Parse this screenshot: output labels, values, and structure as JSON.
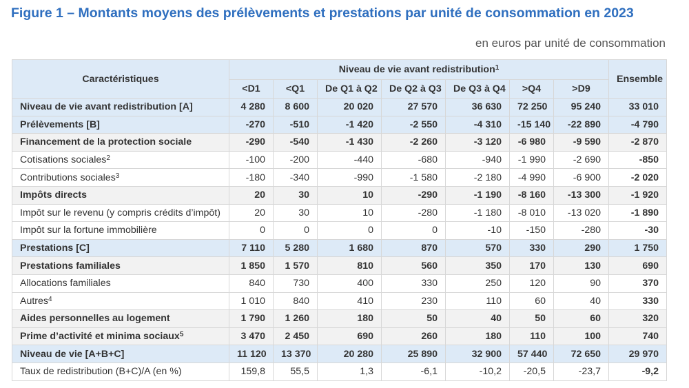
{
  "title": "Figure 1 – Montants moyens des prélèvements et prestations par unité de consommation en 2023",
  "unit": "en euros par unité de consommation",
  "header": {
    "characteristics": "Caractéristiques",
    "group": "Niveau de vie avant redistribution",
    "group_note": "1",
    "ensemble": "Ensemble",
    "columns": [
      "<D1",
      "<Q1",
      "De Q1 à Q2",
      "De Q2 à Q3",
      "De Q3 à Q4",
      ">Q4",
      ">D9"
    ]
  },
  "rows": [
    {
      "label": "Niveau de vie avant redistribution [A]",
      "note": "",
      "style": "blue",
      "values": [
        "4 280",
        "8 600",
        "20 020",
        "27 570",
        "36 630",
        "72 250",
        "95 240"
      ],
      "ensemble": "33 010"
    },
    {
      "label": "Prélèvements [B]",
      "note": "",
      "style": "blue",
      "values": [
        "-270",
        "-510",
        "-1 420",
        "-2 550",
        "-4 310",
        "-15 140",
        "-22 890"
      ],
      "ensemble": "-4 790"
    },
    {
      "label": "Financement de la protection sociale",
      "note": "",
      "style": "shade",
      "values": [
        "-290",
        "-540",
        "-1 430",
        "-2 260",
        "-3 120",
        "-6 980",
        "-9 590"
      ],
      "ensemble": "-2 870"
    },
    {
      "label": "Cotisations sociales",
      "note": "2",
      "style": "plain",
      "values": [
        "-100",
        "-200",
        "-440",
        "-680",
        "-940",
        "-1 990",
        "-2 690"
      ],
      "ensemble": "-850"
    },
    {
      "label": "Contributions sociales",
      "note": "3",
      "style": "plain",
      "values": [
        "-180",
        "-340",
        "-990",
        "-1 580",
        "-2 180",
        "-4 990",
        "-6 900"
      ],
      "ensemble": "-2 020"
    },
    {
      "label": "Impôts directs",
      "note": "",
      "style": "shade",
      "values": [
        "20",
        "30",
        "10",
        "-290",
        "-1 190",
        "-8 160",
        "-13 300"
      ],
      "ensemble": "-1 920"
    },
    {
      "label": "Impôt sur le revenu (y compris crédits d’impôt)",
      "note": "",
      "style": "plain",
      "values": [
        "20",
        "30",
        "10",
        "-280",
        "-1 180",
        "-8 010",
        "-13 020"
      ],
      "ensemble": "-1 890"
    },
    {
      "label": "Impôt sur la fortune immobilière",
      "note": "",
      "style": "plain",
      "values": [
        "0",
        "0",
        "0",
        "0",
        "-10",
        "-150",
        "-280"
      ],
      "ensemble": "-30"
    },
    {
      "label": "Prestations [C]",
      "note": "",
      "style": "blue",
      "values": [
        "7 110",
        "5 280",
        "1 680",
        "870",
        "570",
        "330",
        "290"
      ],
      "ensemble": "1 750"
    },
    {
      "label": "Prestations familiales",
      "note": "",
      "style": "shade",
      "values": [
        "1 850",
        "1 570",
        "810",
        "560",
        "350",
        "170",
        "130"
      ],
      "ensemble": "690"
    },
    {
      "label": "Allocations familiales",
      "note": "",
      "style": "plain",
      "values": [
        "840",
        "730",
        "400",
        "330",
        "250",
        "120",
        "90"
      ],
      "ensemble": "370"
    },
    {
      "label": "Autres",
      "note": "4",
      "style": "plain",
      "values": [
        "1 010",
        "840",
        "410",
        "230",
        "110",
        "60",
        "40"
      ],
      "ensemble": "330"
    },
    {
      "label": "Aides personnelles au logement",
      "note": "",
      "style": "shade",
      "values": [
        "1 790",
        "1 260",
        "180",
        "50",
        "40",
        "50",
        "60"
      ],
      "ensemble": "320"
    },
    {
      "label": "Prime d’activité et minima sociaux",
      "note": "5",
      "style": "shade",
      "values": [
        "3 470",
        "2 450",
        "690",
        "260",
        "180",
        "110",
        "100"
      ],
      "ensemble": "740"
    },
    {
      "label": "Niveau de vie [A+B+C]",
      "note": "",
      "style": "blue",
      "values": [
        "11 120",
        "13 370",
        "20 280",
        "25 890",
        "32 900",
        "57 440",
        "72 650"
      ],
      "ensemble": "29 970"
    },
    {
      "label": "Taux de redistribution (B+C)/A (en %)",
      "note": "",
      "style": "plain",
      "values": [
        "159,8",
        "55,5",
        "1,3",
        "-6,1",
        "-10,2",
        "-20,5",
        "-23,7"
      ],
      "ensemble": "-9,2"
    }
  ]
}
